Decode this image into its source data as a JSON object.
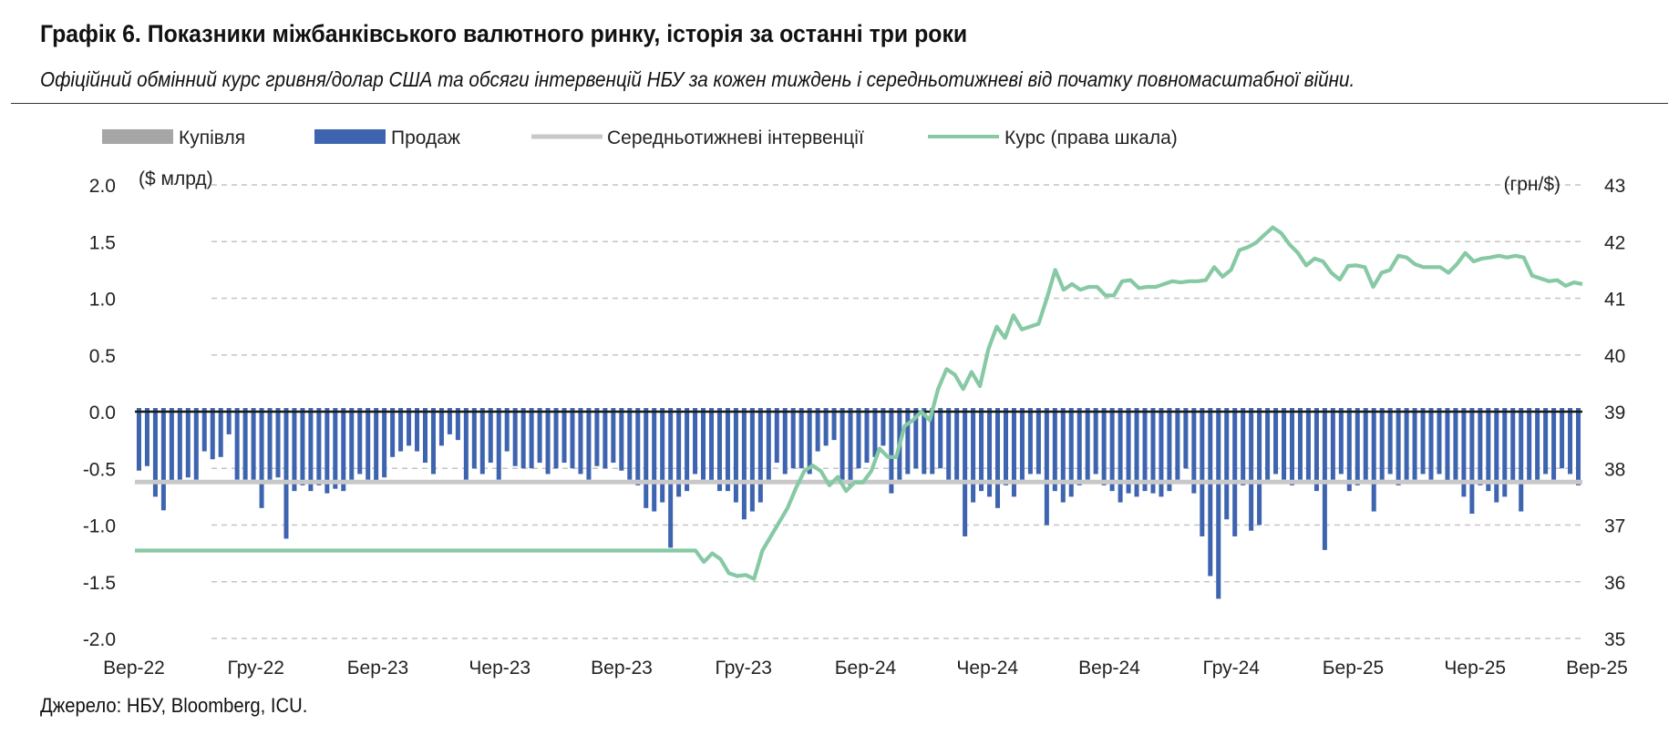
{
  "title": "Графік 6. Показники міжбанківського валютного ринку, історія за останні три роки",
  "subtitle": "Офіційний обмінний курс гривня/долар США та обсяги інтервенцій НБУ за кожен тиждень і середньотижневі від початку повномасштабної війни.",
  "source": "Джерело: НБУ, Bloomberg, ICU.",
  "colors": {
    "buy": "#a6a6a6",
    "sell": "#3e64b0",
    "avg": "#c8c8c8",
    "rate": "#86c9a4"
  },
  "chart_data": {
    "type": "bar",
    "legend": [
      {
        "name": "Купівля",
        "key": "buy"
      },
      {
        "name": "Продаж",
        "key": "sell"
      },
      {
        "name": "Середньотижневі інтервенції",
        "key": "avg"
      },
      {
        "name": "Курс (права шкала)",
        "key": "rate"
      }
    ],
    "ylabel_left": "($ млрд)",
    "ylabel_right": "(грн/$)",
    "ylim_left": [
      -2.0,
      2.0
    ],
    "yticks_left": [
      "2.0",
      "1.5",
      "1.0",
      "0.5",
      "0.0",
      "-0.5",
      "-1.0",
      "-1.5",
      "-2.0"
    ],
    "ylim_right": [
      35,
      43
    ],
    "yticks_right": [
      "43",
      "42",
      "41",
      "40",
      "39",
      "38",
      "37",
      "36",
      "35"
    ],
    "x_labels": [
      "Вер-22",
      "Гру-22",
      "Бер-23",
      "Чер-23",
      "Вер-23",
      "Гру-23",
      "Бер-24",
      "Чер-24",
      "Вер-24",
      "Гру-24",
      "Бер-25",
      "Чер-25",
      "Вер-25"
    ],
    "grid": true,
    "legend_position": "top",
    "average_intervention": -0.62,
    "sales": [
      -0.52,
      -0.48,
      -0.75,
      -0.87,
      -0.62,
      -0.6,
      -0.58,
      -0.6,
      -0.35,
      -0.42,
      -0.4,
      -0.2,
      -0.6,
      -0.6,
      -0.6,
      -0.85,
      -0.6,
      -0.58,
      -1.12,
      -0.7,
      -0.65,
      -0.7,
      -0.65,
      -0.72,
      -0.68,
      -0.7,
      -0.6,
      -0.55,
      -0.6,
      -0.62,
      -0.58,
      -0.4,
      -0.35,
      -0.3,
      -0.35,
      -0.45,
      -0.55,
      -0.3,
      -0.2,
      -0.25,
      -0.6,
      -0.5,
      -0.55,
      -0.45,
      -0.6,
      -0.35,
      -0.48,
      -0.5,
      -0.5,
      -0.45,
      -0.55,
      -0.5,
      -0.45,
      -0.5,
      -0.55,
      -0.6,
      -0.48,
      -0.5,
      -0.45,
      -0.52,
      -0.6,
      -0.65,
      -0.85,
      -0.88,
      -0.8,
      -1.2,
      -0.75,
      -0.7,
      -0.55,
      -0.6,
      -0.62,
      -0.7,
      -0.7,
      -0.8,
      -0.95,
      -0.88,
      -0.8,
      -0.6,
      -0.45,
      -0.55,
      -0.5,
      -0.5,
      -0.55,
      -0.35,
      -0.3,
      -0.25,
      -0.6,
      -0.65,
      -0.5,
      -0.45,
      -0.4,
      -0.3,
      -0.72,
      -0.6,
      -0.55,
      -0.5,
      -0.55,
      -0.55,
      -0.5,
      -0.6,
      -0.6,
      -1.1,
      -0.8,
      -0.7,
      -0.75,
      -0.85,
      -0.65,
      -0.75,
      -0.6,
      -0.55,
      -0.55,
      -1.0,
      -0.7,
      -0.8,
      -0.75,
      -0.65,
      -0.6,
      -0.55,
      -0.65,
      -0.7,
      -0.8,
      -0.72,
      -0.75,
      -0.7,
      -0.72,
      -0.75,
      -0.7,
      -0.6,
      -0.5,
      -0.72,
      -1.1,
      -1.45,
      -1.65,
      -0.95,
      -1.1,
      -0.65,
      -1.05,
      -1.0,
      -0.6,
      -0.55,
      -0.6,
      -0.65,
      -0.6,
      -0.6,
      -0.7,
      -1.22,
      -0.6,
      -0.55,
      -0.7,
      -0.65,
      -0.6,
      -0.88,
      -0.6,
      -0.55,
      -0.65,
      -0.6,
      -0.6,
      -0.55,
      -0.6,
      -0.55,
      -0.62,
      -0.6,
      -0.75,
      -0.9,
      -0.65,
      -0.7,
      -0.8,
      -0.75,
      -0.62,
      -0.88,
      -0.62,
      -0.6,
      -0.55,
      -0.6,
      -0.5,
      -0.55,
      -0.65
    ],
    "rate": [
      36.55,
      36.55,
      36.55,
      36.55,
      36.55,
      36.55,
      36.55,
      36.55,
      36.55,
      36.55,
      36.55,
      36.55,
      36.55,
      36.55,
      36.55,
      36.55,
      36.55,
      36.55,
      36.55,
      36.55,
      36.55,
      36.55,
      36.55,
      36.55,
      36.55,
      36.55,
      36.55,
      36.55,
      36.55,
      36.55,
      36.55,
      36.55,
      36.55,
      36.55,
      36.55,
      36.55,
      36.55,
      36.55,
      36.55,
      36.55,
      36.55,
      36.55,
      36.55,
      36.55,
      36.55,
      36.55,
      36.55,
      36.55,
      36.55,
      36.55,
      36.55,
      36.55,
      36.55,
      36.55,
      36.55,
      36.55,
      36.55,
      36.55,
      36.55,
      36.55,
      36.55,
      36.55,
      36.55,
      36.55,
      36.55,
      36.55,
      36.55,
      36.55,
      36.35,
      36.5,
      36.4,
      36.15,
      36.1,
      36.12,
      36.05,
      36.55,
      36.8,
      37.05,
      37.3,
      37.65,
      37.95,
      38.05,
      37.95,
      37.7,
      37.85,
      37.6,
      37.75,
      37.75,
      37.95,
      38.35,
      38.2,
      38.2,
      38.75,
      38.85,
      39.0,
      38.85,
      39.4,
      39.75,
      39.65,
      39.4,
      39.7,
      39.45,
      40.1,
      40.5,
      40.3,
      40.7,
      40.45,
      40.5,
      40.55,
      41.0,
      41.5,
      41.15,
      41.25,
      41.15,
      41.2,
      41.2,
      41.05,
      41.05,
      41.3,
      41.32,
      41.18,
      41.2,
      41.2,
      41.25,
      41.3,
      41.28,
      41.3,
      41.3,
      41.32,
      41.55,
      41.38,
      41.5,
      41.85,
      41.9,
      41.98,
      42.12,
      42.25,
      42.15,
      41.95,
      41.8,
      41.58,
      41.7,
      41.65,
      41.45,
      41.33,
      41.57,
      41.58,
      41.55,
      41.2,
      41.45,
      41.5,
      41.75,
      41.72,
      41.6,
      41.55,
      41.55,
      41.55,
      41.45,
      41.6,
      41.8,
      41.65,
      41.7,
      41.72,
      41.75,
      41.72,
      41.75,
      41.72,
      41.4,
      41.35,
      41.3,
      41.32,
      41.22,
      41.28,
      41.25
    ]
  }
}
